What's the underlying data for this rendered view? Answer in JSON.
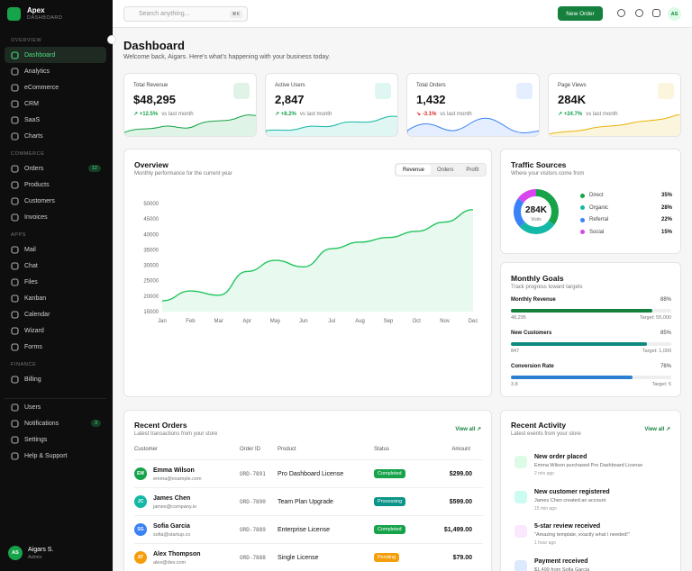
{
  "sidebar": {
    "brand": "Apex",
    "brand_sub": "DASHBOARD",
    "sections": [
      {
        "label": "OVERVIEW",
        "items": [
          {
            "label": "Dashboard"
          },
          {
            "label": "Analytics"
          },
          {
            "label": "eCommerce"
          },
          {
            "label": "CRM"
          },
          {
            "label": "SaaS"
          },
          {
            "label": "Charts"
          }
        ]
      },
      {
        "label": "COMMERCE",
        "items": [
          {
            "label": "Orders",
            "badge": "12"
          },
          {
            "label": "Products"
          },
          {
            "label": "Customers"
          },
          {
            "label": "Invoices"
          }
        ]
      },
      {
        "label": "APPS",
        "items": [
          {
            "label": "Mail"
          },
          {
            "label": "Chat"
          },
          {
            "label": "Files"
          },
          {
            "label": "Kanban"
          },
          {
            "label": "Calendar"
          },
          {
            "label": "Wizard"
          },
          {
            "label": "Forms"
          }
        ]
      },
      {
        "label": "FINANCE",
        "items": [
          {
            "label": "Billing"
          }
        ]
      }
    ],
    "footer_items": [
      {
        "label": "Users"
      },
      {
        "label": "Notifications",
        "badge": "3"
      },
      {
        "label": "Settings"
      },
      {
        "label": "Help & Support"
      }
    ],
    "user": {
      "initials": "AS",
      "name": "Aigars S.",
      "role": "Admin"
    }
  },
  "topbar": {
    "search": "Search anything...",
    "shortcut": "⌘K",
    "button": "New Order",
    "avatar": "AS"
  },
  "header": {
    "title": "Dashboard",
    "subtitle": "Welcome back, Aigars. Here's what's happening with your business today."
  },
  "stats": [
    {
      "label": "Total Revenue",
      "value": "$48,295",
      "change": "↗ +12.5%",
      "note": "vs last month",
      "color": "#16a34a"
    },
    {
      "label": "Active Users",
      "value": "2,847",
      "change": "↗ +8.2%",
      "note": "vs last month",
      "color": "#16a34a"
    },
    {
      "label": "Total Orders",
      "value": "1,432",
      "change": "↘ -3.1%",
      "note": "vs last month",
      "color": "#dc2626"
    },
    {
      "label": "Page Views",
      "value": "284K",
      "change": "↗ +24.7%",
      "note": "vs last month",
      "color": "#16a34a"
    }
  ],
  "overview": {
    "title": "Overview",
    "subtitle": "Monthly performance for the current year",
    "tabs": [
      "Revenue",
      "Orders",
      "Profit"
    ],
    "chart": {
      "type": "line",
      "categories": [
        "Jan",
        "Feb",
        "Mar",
        "Apr",
        "May",
        "Jun",
        "Jul",
        "Aug",
        "Sep",
        "Oct",
        "Nov",
        "Dec"
      ],
      "values": [
        18500,
        21700,
        20300,
        28000,
        31600,
        29500,
        35400,
        37500,
        39000,
        41000,
        44000,
        48000
      ],
      "color": "#22c55e",
      "ylim": [
        15000,
        50000
      ],
      "yticks": [
        15000,
        20000,
        25000,
        30000,
        35000,
        40000,
        45000,
        50000
      ],
      "grid": false
    }
  },
  "traffic": {
    "title": "Traffic Sources",
    "subtitle": "Where your visitors come from",
    "center_value": "284K",
    "center_label": "Visits",
    "chart": {
      "type": "pie",
      "categories": [
        "Direct",
        "Organic",
        "Referral",
        "Social"
      ],
      "values": [
        35,
        28,
        22,
        15
      ],
      "value_labels": [
        "35%",
        "28%",
        "22%",
        "15%"
      ],
      "colors": [
        "#16a34a",
        "#14b8a6",
        "#3b82f6",
        "#d946ef"
      ]
    }
  },
  "goals": {
    "title": "Monthly Goals",
    "subtitle": "Track progress toward targets",
    "items": [
      {
        "label": "Monthly Revenue",
        "percent": 88,
        "percent_label": "88%",
        "current": "48,295",
        "target": "Target: 55,000",
        "color": "#15803d"
      },
      {
        "label": "New Customers",
        "percent": 85,
        "percent_label": "85%",
        "current": "847",
        "target": "Target: 1,000",
        "color": "#0f8a7e"
      },
      {
        "label": "Conversion Rate",
        "percent": 76,
        "percent_label": "76%",
        "current": "3.8",
        "target": "Target: 5",
        "color": "#2b7fd0"
      }
    ]
  },
  "orders": {
    "title": "Recent Orders",
    "subtitle": "Latest transactions from your store",
    "link": "View all ↗",
    "columns": [
      "Customer",
      "Order ID",
      "Product",
      "Status",
      "Amount"
    ],
    "rows": [
      {
        "initials": "EW",
        "name": "Emma Wilson",
        "email": "emma@example.com",
        "id": "ORD-7891",
        "product": "Pro Dashboard License",
        "status": "Completed",
        "amount": "$299.00",
        "color": "#16a34a",
        "status_color": "#16a34a"
      },
      {
        "initials": "JC",
        "name": "James Chen",
        "email": "james@company.io",
        "id": "ORD-7890",
        "product": "Team Plan Upgrade",
        "status": "Processing",
        "amount": "$599.00",
        "color": "#14b8a6",
        "status_color": "#0d9488"
      },
      {
        "initials": "SG",
        "name": "Sofia Garcia",
        "email": "sofia@startup.co",
        "id": "ORD-7889",
        "product": "Enterprise License",
        "status": "Completed",
        "amount": "$1,499.00",
        "color": "#3b82f6",
        "status_color": "#16a34a"
      },
      {
        "initials": "AT",
        "name": "Alex Thompson",
        "email": "alex@dev.com",
        "id": "ORD-7888",
        "product": "Single License",
        "status": "Pending",
        "amount": "$79.00",
        "color": "#f59e0b",
        "status_color": "#f59e0b"
      }
    ]
  },
  "activity": {
    "title": "Recent Activity",
    "subtitle": "Latest events from your store",
    "link": "View all ↗",
    "items": [
      {
        "title": "New order placed",
        "detail": "Emma Wilson purchased Pro Dashboard License",
        "time": "2 min ago",
        "color": "#dcfce7"
      },
      {
        "title": "New customer registered",
        "detail": "James Chen created an account",
        "time": "15 min ago",
        "color": "#ccfbf1"
      },
      {
        "title": "5-star review received",
        "detail": "\"Amazing template, exactly what I needed!\"",
        "time": "1 hour ago",
        "color": "#fae8ff"
      },
      {
        "title": "Payment received",
        "detail": "$1,499 from Sofia Garcia",
        "color": "#dbeafe"
      }
    ]
  }
}
